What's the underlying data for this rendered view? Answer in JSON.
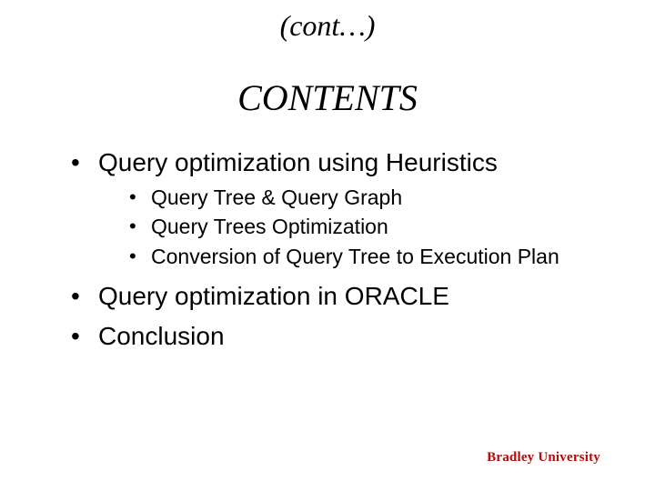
{
  "colors": {
    "background": "#ffffff",
    "text": "#000000",
    "footer": "#b10b0b"
  },
  "header": {
    "cont": "(cont…)",
    "title": "CONTENTS"
  },
  "bullets": {
    "item1": {
      "label": "Query optimization using Heuristics",
      "sub": {
        "a": "Query Tree & Query Graph",
        "b": "Query Trees Optimization",
        "c": "Conversion of Query Tree to Execution Plan"
      }
    },
    "item2": {
      "label": "Query optimization in ORACLE"
    },
    "item3": {
      "label": "Conclusion"
    }
  },
  "footer": {
    "text": "Bradley University"
  }
}
